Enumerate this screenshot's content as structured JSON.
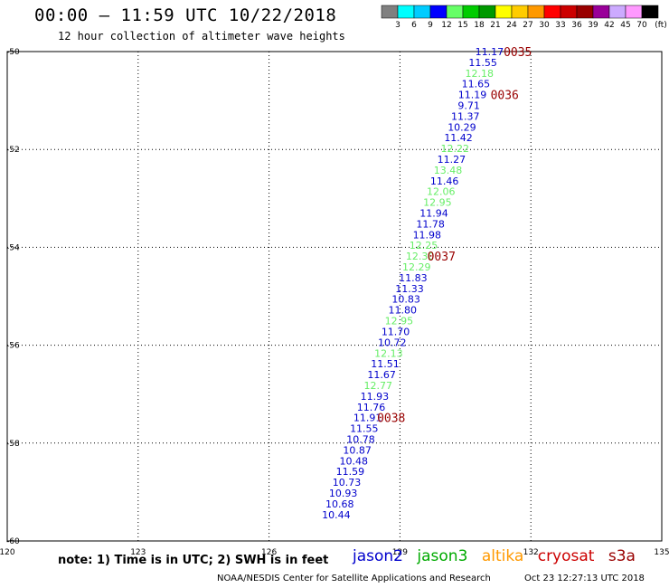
{
  "header": {
    "title": "00:00 – 11:59 UTC 10/22/2018",
    "subtitle": "12 hour collection of altimeter wave heights"
  },
  "colorbar": {
    "levels": [
      "3",
      "6",
      "9",
      "12",
      "15",
      "18",
      "21",
      "24",
      "27",
      "30",
      "33",
      "36",
      "39",
      "42",
      "45",
      "70"
    ],
    "colors": [
      "#808080",
      "#00ffff",
      "#00ccff",
      "#0000ff",
      "#66ff66",
      "#00cc00",
      "#009900",
      "#ffff00",
      "#ffcc00",
      "#ff9900",
      "#ff0000",
      "#cc0000",
      "#990000",
      "#990099",
      "#ccaaff",
      "#ff99ff",
      "#000000"
    ],
    "unit": "(ft)"
  },
  "axes": {
    "lon_ticks": [
      "120",
      "123",
      "126",
      "129",
      "132",
      "135"
    ],
    "lat_ticks": [
      "-50",
      "-52",
      "-54",
      "-56",
      "-58",
      "-60"
    ]
  },
  "map_data": {
    "lon_range": [
      120,
      135
    ],
    "lat_range": [
      -60,
      -50
    ],
    "observations": [
      {
        "lon": 131.05,
        "lat": -50.0,
        "v": "11.17",
        "c": "#0000cc"
      },
      {
        "lon": 130.9,
        "lat": -50.22,
        "v": "11.55",
        "c": "#0000cc"
      },
      {
        "lon": 130.82,
        "lat": -50.44,
        "v": "12.18",
        "c": "#66ee66"
      },
      {
        "lon": 130.74,
        "lat": -50.66,
        "v": "11.65",
        "c": "#0000cc"
      },
      {
        "lon": 130.66,
        "lat": -50.88,
        "v": "11.19",
        "c": "#0000cc"
      },
      {
        "lon": 130.58,
        "lat": -51.1,
        "v": "9.71",
        "c": "#0000cc"
      },
      {
        "lon": 130.5,
        "lat": -51.32,
        "v": "11.37",
        "c": "#0000cc"
      },
      {
        "lon": 130.42,
        "lat": -51.54,
        "v": "10.29",
        "c": "#0000cc"
      },
      {
        "lon": 130.34,
        "lat": -51.76,
        "v": "11.42",
        "c": "#0000cc"
      },
      {
        "lon": 130.26,
        "lat": -51.98,
        "v": "12.22",
        "c": "#66ee66"
      },
      {
        "lon": 130.18,
        "lat": -52.2,
        "v": "11.27",
        "c": "#0000cc"
      },
      {
        "lon": 130.1,
        "lat": -52.42,
        "v": "13.48",
        "c": "#66ee66"
      },
      {
        "lon": 130.02,
        "lat": -52.64,
        "v": "11.46",
        "c": "#0000cc"
      },
      {
        "lon": 129.94,
        "lat": -52.86,
        "v": "12.06",
        "c": "#66ee66"
      },
      {
        "lon": 129.86,
        "lat": -53.08,
        "v": "12.95",
        "c": "#66ee66"
      },
      {
        "lon": 129.78,
        "lat": -53.3,
        "v": "11.94",
        "c": "#0000cc"
      },
      {
        "lon": 129.7,
        "lat": -53.52,
        "v": "11.78",
        "c": "#0000cc"
      },
      {
        "lon": 129.62,
        "lat": -53.74,
        "v": "11.98",
        "c": "#0000cc"
      },
      {
        "lon": 129.54,
        "lat": -53.96,
        "v": "12.25",
        "c": "#66ee66"
      },
      {
        "lon": 129.46,
        "lat": -54.18,
        "v": "12.30",
        "c": "#66ee66"
      },
      {
        "lon": 129.38,
        "lat": -54.4,
        "v": "12.29",
        "c": "#66ee66"
      },
      {
        "lon": 129.3,
        "lat": -54.62,
        "v": "11.83",
        "c": "#0000cc"
      },
      {
        "lon": 129.22,
        "lat": -54.84,
        "v": "11.33",
        "c": "#0000cc"
      },
      {
        "lon": 129.14,
        "lat": -55.06,
        "v": "10.83",
        "c": "#0000cc"
      },
      {
        "lon": 129.06,
        "lat": -55.28,
        "v": "11.80",
        "c": "#0000cc"
      },
      {
        "lon": 128.98,
        "lat": -55.5,
        "v": "12.95",
        "c": "#66ee66"
      },
      {
        "lon": 128.9,
        "lat": -55.72,
        "v": "11.70",
        "c": "#0000cc"
      },
      {
        "lon": 128.82,
        "lat": -55.94,
        "v": "10.72",
        "c": "#0000cc"
      },
      {
        "lon": 128.74,
        "lat": -56.16,
        "v": "12.13",
        "c": "#66ee66"
      },
      {
        "lon": 128.66,
        "lat": -56.38,
        "v": "11.51",
        "c": "#0000cc"
      },
      {
        "lon": 128.58,
        "lat": -56.6,
        "v": "11.67",
        "c": "#0000cc"
      },
      {
        "lon": 128.5,
        "lat": -56.82,
        "v": "12.77",
        "c": "#66ee66"
      },
      {
        "lon": 128.42,
        "lat": -57.04,
        "v": "11.93",
        "c": "#0000cc"
      },
      {
        "lon": 128.34,
        "lat": -57.26,
        "v": "11.76",
        "c": "#0000cc"
      },
      {
        "lon": 128.26,
        "lat": -57.48,
        "v": "11.91",
        "c": "#0000cc"
      },
      {
        "lon": 128.18,
        "lat": -57.7,
        "v": "11.55",
        "c": "#0000cc"
      },
      {
        "lon": 128.1,
        "lat": -57.92,
        "v": "10.78",
        "c": "#0000cc"
      },
      {
        "lon": 128.02,
        "lat": -58.14,
        "v": "10.87",
        "c": "#0000cc"
      },
      {
        "lon": 127.94,
        "lat": -58.36,
        "v": "10.48",
        "c": "#0000cc"
      },
      {
        "lon": 127.86,
        "lat": -58.58,
        "v": "11.59",
        "c": "#0000cc"
      },
      {
        "lon": 127.78,
        "lat": -58.8,
        "v": "10.73",
        "c": "#0000cc"
      },
      {
        "lon": 127.7,
        "lat": -59.02,
        "v": "10.93",
        "c": "#0000cc"
      },
      {
        "lon": 127.62,
        "lat": -59.24,
        "v": "10.68",
        "c": "#0000cc"
      },
      {
        "lon": 127.54,
        "lat": -59.46,
        "v": "10.44",
        "c": "#0000cc"
      }
    ],
    "time_labels": [
      {
        "lon": 131.7,
        "lat": -50.0,
        "t": "0035"
      },
      {
        "lon": 131.4,
        "lat": -50.88,
        "t": "0036"
      },
      {
        "lon": 129.95,
        "lat": -54.18,
        "t": "0037"
      },
      {
        "lon": 128.8,
        "lat": -57.48,
        "t": "0038"
      }
    ]
  },
  "footer": {
    "note": "note: 1) Time is in UTC; 2) SWH is in feet",
    "legend": [
      {
        "name": "jason2",
        "color": "#0000cc"
      },
      {
        "name": "jason3",
        "color": "#00aa00"
      },
      {
        "name": "altika",
        "color": "#ff9900"
      },
      {
        "name": "cryosat",
        "color": "#cc0000"
      },
      {
        "name": "s3a",
        "color": "#990000"
      }
    ],
    "credit": "NOAA/NESDIS Center for Satellite Applications and Research",
    "timestamp": "Oct 23 12:27:13 UTC 2018"
  }
}
